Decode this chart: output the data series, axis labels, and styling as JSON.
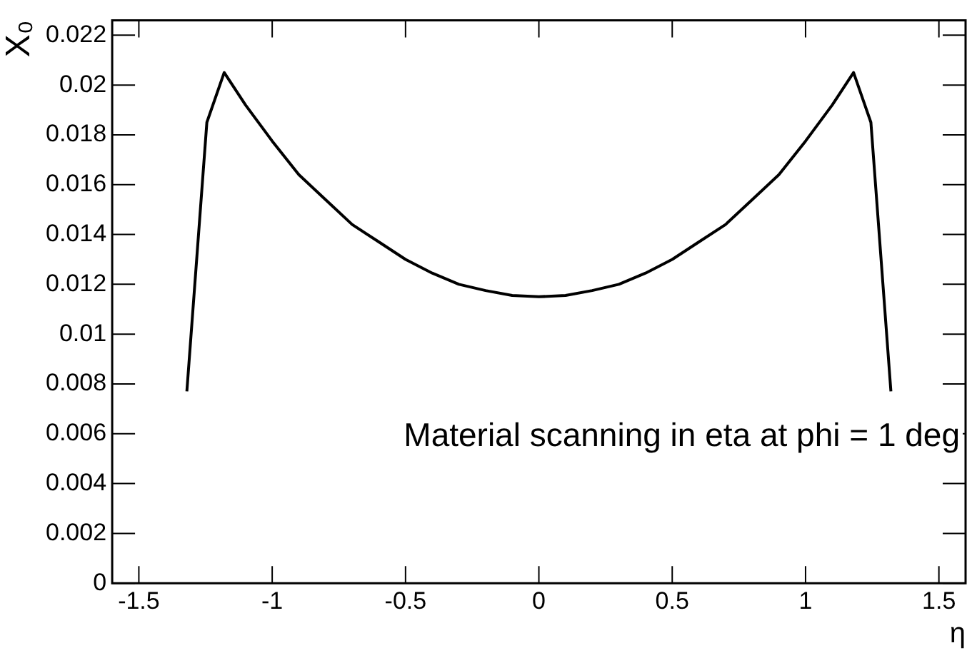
{
  "chart_data": {
    "type": "line",
    "xlabel": "η",
    "ylabel": "X₀",
    "x": [
      -1.32,
      -1.245,
      -1.18,
      -1.1,
      -1.0,
      -0.9,
      -0.8,
      -0.7,
      -0.6,
      -0.5,
      -0.4,
      -0.3,
      -0.2,
      -0.1,
      0,
      0.1,
      0.2,
      0.3,
      0.4,
      0.5,
      0.6,
      0.7,
      0.8,
      0.9,
      1.0,
      1.1,
      1.18,
      1.245,
      1.32
    ],
    "series": [
      {
        "color": "#000000",
        "values": [
          0.0077,
          0.0185,
          0.0205,
          0.0192,
          0.01775,
          0.0164,
          0.0154,
          0.0144,
          0.0137,
          0.013,
          0.01245,
          0.012,
          0.01175,
          0.01155,
          0.0115,
          0.01155,
          0.01175,
          0.012,
          0.01245,
          0.013,
          0.0137,
          0.0144,
          0.0154,
          0.0164,
          0.01775,
          0.0192,
          0.0205,
          0.0185,
          0.0077
        ]
      }
    ],
    "xlim": [
      -1.6,
      1.6
    ],
    "xticks": [
      -1.5,
      -1,
      -0.5,
      0,
      0.5,
      1,
      1.5
    ],
    "ylim": [
      0,
      0.0226
    ],
    "yticks": [
      0,
      0.002,
      0.004,
      0.006,
      0.008,
      0.01,
      0.012,
      0.014,
      0.016,
      0.018,
      0.02,
      0.022
    ],
    "grid": false,
    "legend": false,
    "marker": "none",
    "line_style": "solid",
    "annotations": [
      "Material scanning in eta at phi = 1 deg"
    ]
  }
}
